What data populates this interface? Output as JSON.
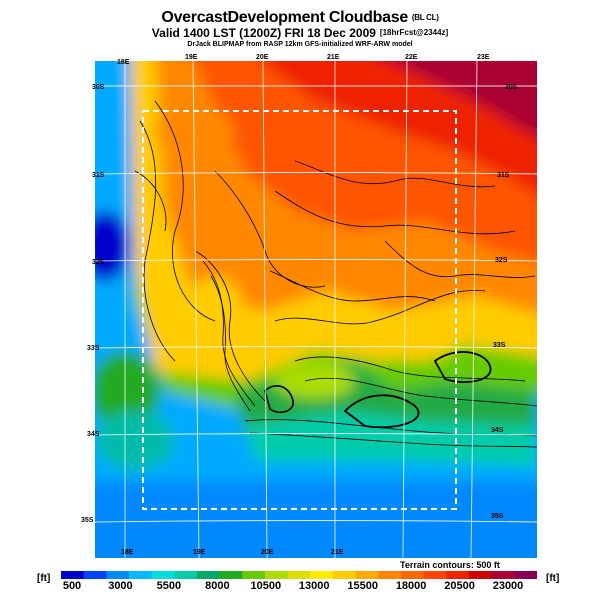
{
  "header": {
    "title": "OvercastDevelopment Cloudbase",
    "title_tag": "(BL CL)",
    "valid_line": "Valid 1400 LST (1200Z) FRI 18 Dec 2009",
    "valid_tag": "[18hrFcst@2344z]",
    "credit": "DrJack BLIPMAP from RASP 12km GFS-initialized WRF-ARW model"
  },
  "map": {
    "lon_ticks_top": [
      "18E",
      "19E",
      "20E",
      "21E",
      "22E",
      "23E"
    ],
    "lon_ticks_bottom": [
      "18E",
      "19E",
      "20E",
      "21E"
    ],
    "lat_ticks_left": [
      "30S",
      "31S",
      "32S",
      "33S",
      "34S",
      "35S"
    ],
    "lat_ticks_right": [
      "30S",
      "31S",
      "32S",
      "33S",
      "34S",
      "35S"
    ],
    "terrain_note": "Terrain contours: 500 ft",
    "inner_domain_border": "dashed-white",
    "contour_color": "#000000"
  },
  "colorbar": {
    "unit": "[ft]",
    "labels": [
      "500",
      "3000",
      "5500",
      "8000",
      "10500",
      "13000",
      "15500",
      "18000",
      "20500",
      "23000"
    ],
    "colors": [
      "#0000cc",
      "#0044ff",
      "#0088ff",
      "#00bbff",
      "#00dddd",
      "#00ccaa",
      "#00aa66",
      "#22aa22",
      "#66cc00",
      "#aadd00",
      "#dddd00",
      "#ffee00",
      "#ffcc00",
      "#ffaa00",
      "#ff8800",
      "#ff6600",
      "#ff4400",
      "#ee2200",
      "#cc0000",
      "#aa0033",
      "#880055"
    ]
  }
}
